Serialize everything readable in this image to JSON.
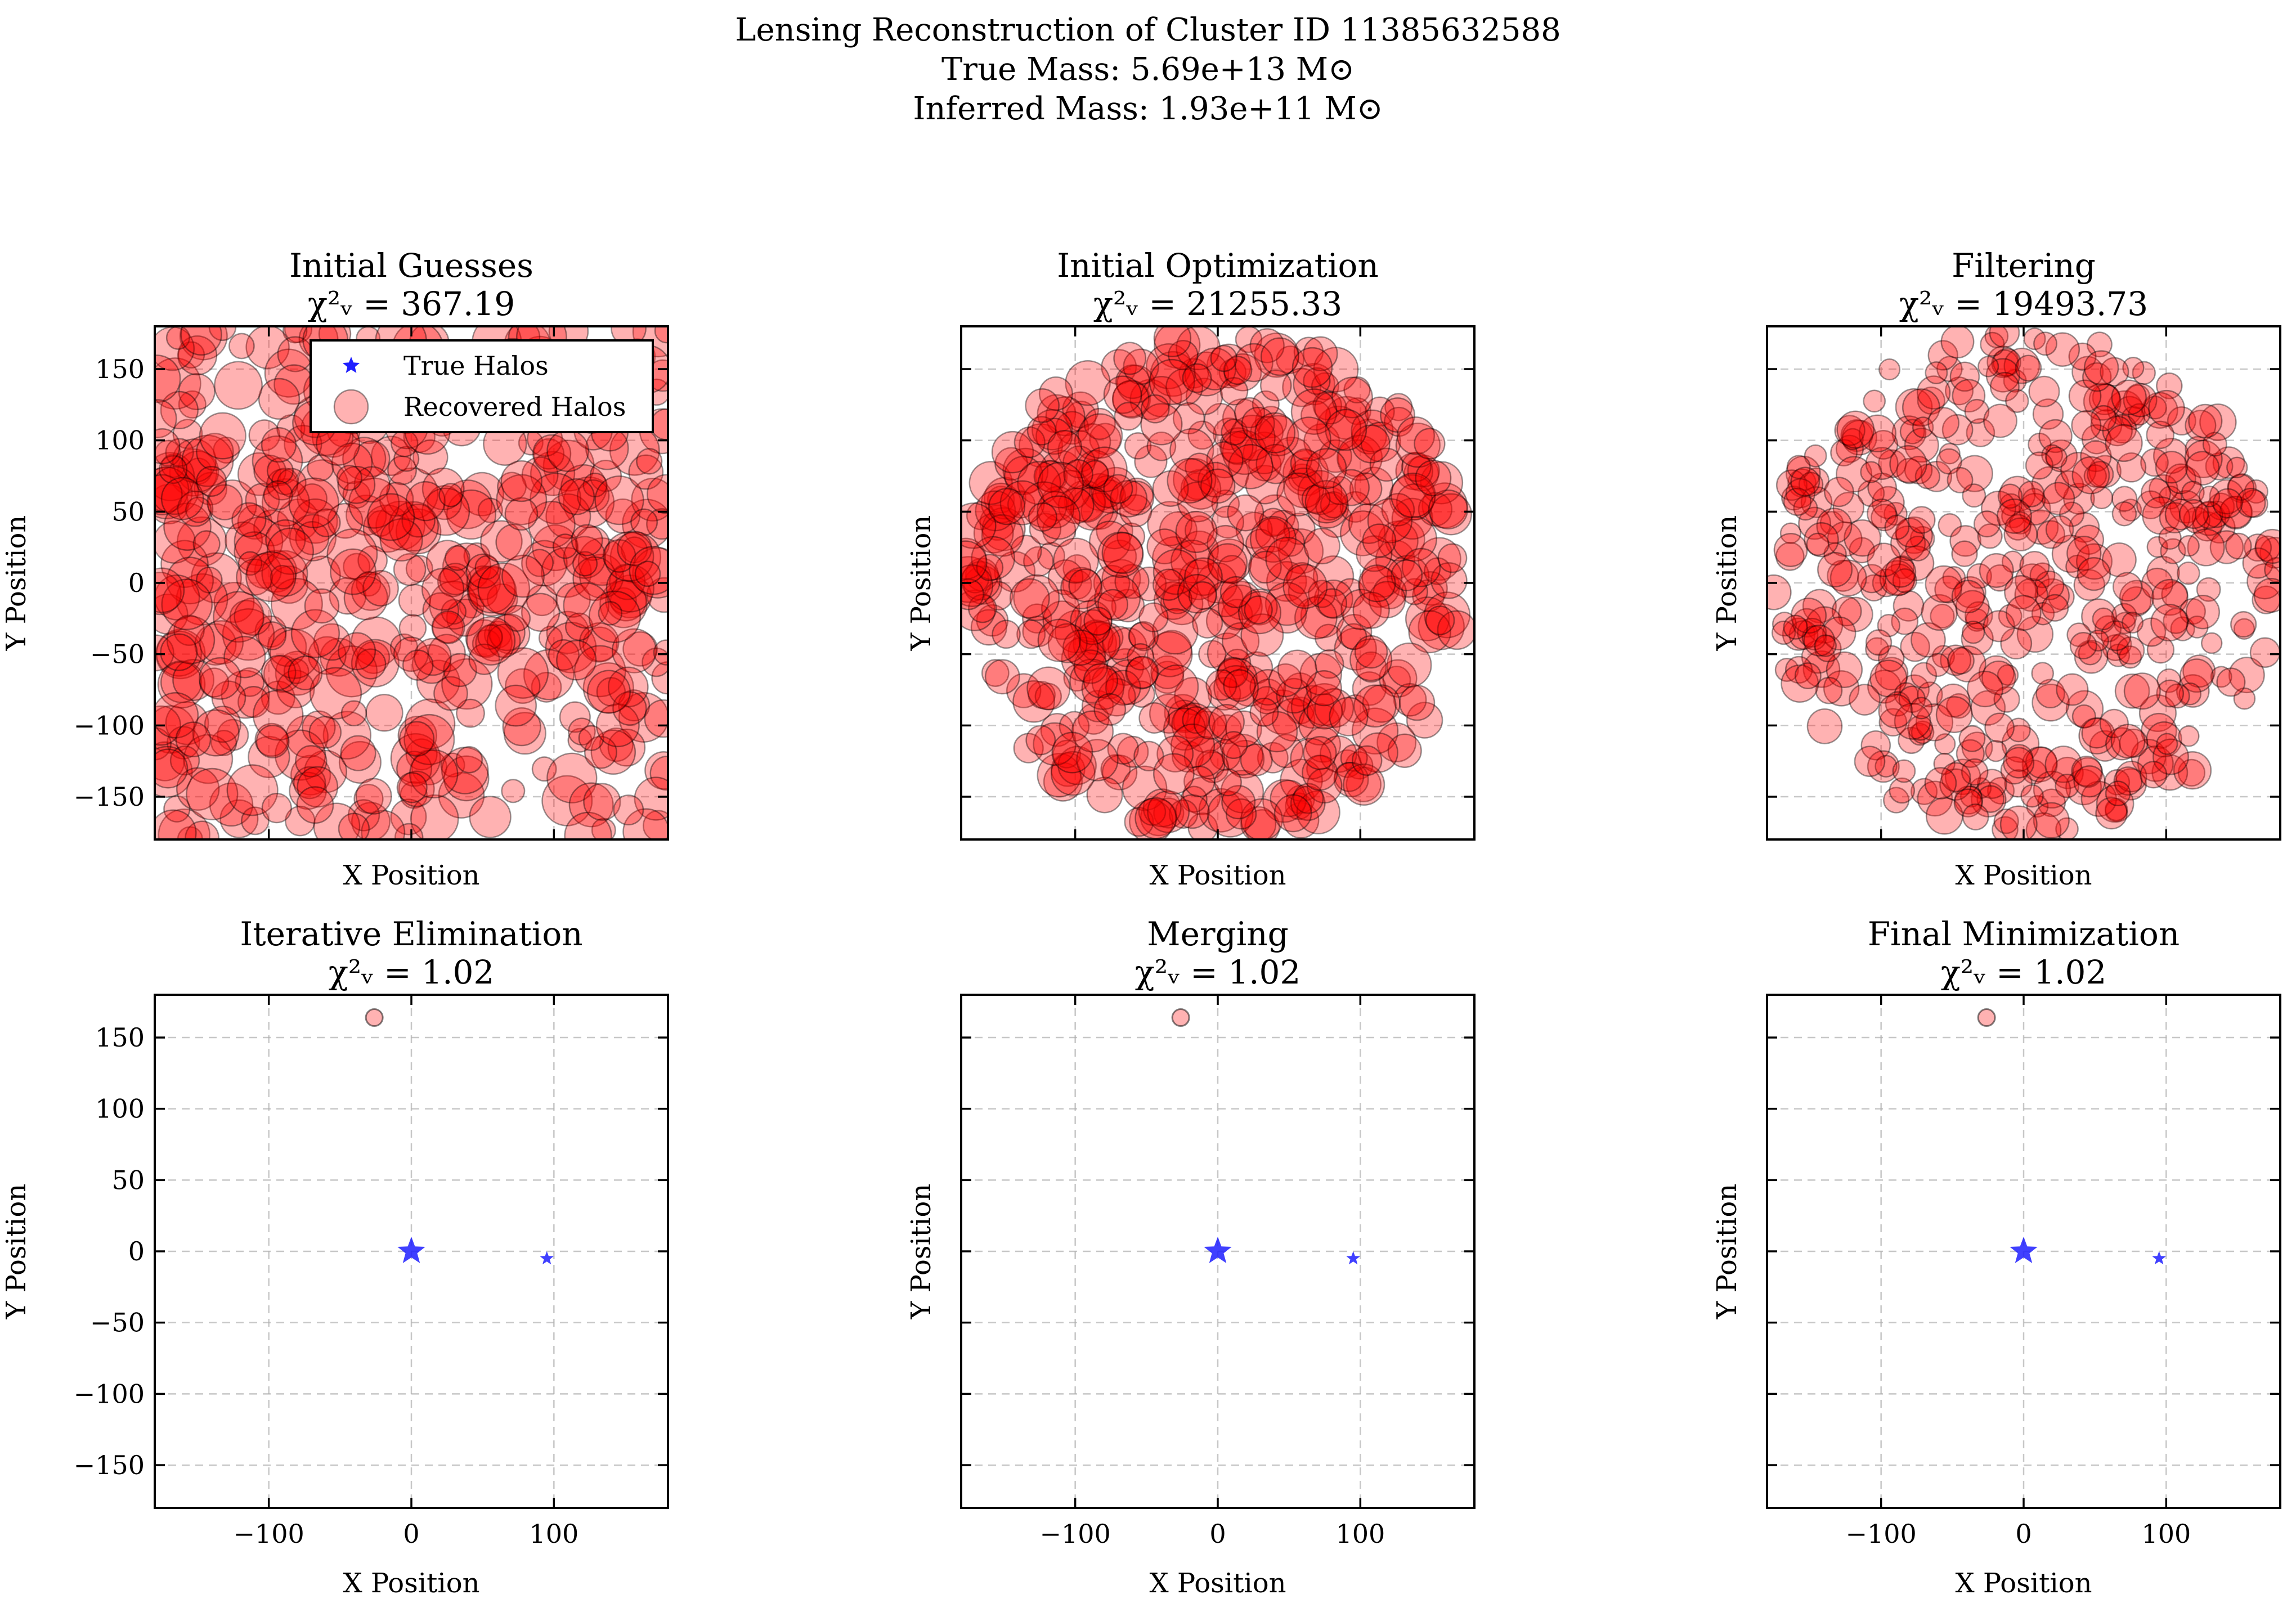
{
  "figure": {
    "title_lines": [
      "Lensing Reconstruction of Cluster ID 11385632588",
      "True Mass: 5.69e+13 M⊙",
      "Inferred Mass: 1.93e+11 M⊙"
    ]
  },
  "colors": {
    "true_halo": "#1f1fff",
    "recovered_halo": "#ff0000",
    "grid": "#b0b0b0",
    "frame": "#000000"
  },
  "legend": {
    "true_label": "True Halos",
    "recovered_label": "Recovered Halos",
    "placement": "upper-right"
  },
  "chart_data": [
    {
      "type": "scatter",
      "title": "Initial Guesses",
      "chi2_text": "χ²ᵥ = 367.19",
      "xlabel": "X Position",
      "ylabel": "Y Position",
      "xlim": [
        -180,
        180
      ],
      "ylim": [
        -180,
        180
      ],
      "xticks": [
        -100,
        0,
        100
      ],
      "yticks": [
        -150,
        -100,
        -50,
        0,
        50,
        100,
        150
      ],
      "show_xticklabels": false,
      "show_yticklabels": true,
      "grid": true,
      "legend": true,
      "recovered_cloud": {
        "count": 520,
        "x_range": [
          -180,
          180
        ],
        "y_range": [
          -180,
          180
        ],
        "size_range": [
          8,
          18
        ],
        "distribution": "square",
        "seed": 11
      },
      "recovered_halos": [],
      "true_halos": []
    },
    {
      "type": "scatter",
      "title": "Initial Optimization",
      "chi2_text": "χ²ᵥ = 21255.33",
      "xlabel": "X Position",
      "ylabel": "Y Position",
      "xlim": [
        -180,
        180
      ],
      "ylim": [
        -180,
        180
      ],
      "xticks": [
        -100,
        0,
        100
      ],
      "yticks": [
        -150,
        -100,
        -50,
        0,
        50,
        100,
        150
      ],
      "show_xticklabels": false,
      "show_yticklabels": false,
      "grid": true,
      "legend": false,
      "recovered_cloud": {
        "count": 560,
        "x_range": [
          -180,
          180
        ],
        "y_range": [
          -180,
          180
        ],
        "size_range": [
          9,
          16
        ],
        "distribution": "disk",
        "radius": 178,
        "seed": 23
      },
      "recovered_halos": [],
      "true_halos": []
    },
    {
      "type": "scatter",
      "title": "Filtering",
      "chi2_text": "χ²ᵥ = 19493.73",
      "xlabel": "X Position",
      "ylabel": "Y Position",
      "xlim": [
        -180,
        180
      ],
      "ylim": [
        -180,
        180
      ],
      "xticks": [
        -100,
        0,
        100
      ],
      "yticks": [
        -150,
        -100,
        -50,
        0,
        50,
        100,
        150
      ],
      "show_xticklabels": false,
      "show_yticklabels": false,
      "grid": true,
      "legend": false,
      "recovered_cloud": {
        "count": 500,
        "x_range": [
          -180,
          180
        ],
        "y_range": [
          -180,
          180
        ],
        "size_range": [
          7,
          13
        ],
        "distribution": "disk",
        "radius": 178,
        "seed": 37
      },
      "recovered_halos": [],
      "true_halos": []
    },
    {
      "type": "scatter",
      "title": "Iterative Elimination",
      "chi2_text": "χ²ᵥ = 1.02",
      "xlabel": "X Position",
      "ylabel": "Y Position",
      "xlim": [
        -180,
        180
      ],
      "ylim": [
        -180,
        180
      ],
      "xticks": [
        -100,
        0,
        100
      ],
      "yticks": [
        -150,
        -100,
        -50,
        0,
        50,
        100,
        150
      ],
      "show_xticklabels": true,
      "show_yticklabels": true,
      "grid": true,
      "legend": false,
      "recovered_cloud": null,
      "recovered_halos": [
        {
          "x": -26,
          "y": 164
        }
      ],
      "true_halos": [
        {
          "x": 0,
          "y": 0,
          "size": "large"
        },
        {
          "x": 95,
          "y": -5,
          "size": "small"
        }
      ]
    },
    {
      "type": "scatter",
      "title": "Merging",
      "chi2_text": "χ²ᵥ = 1.02",
      "xlabel": "X Position",
      "ylabel": "Y Position",
      "xlim": [
        -180,
        180
      ],
      "ylim": [
        -180,
        180
      ],
      "xticks": [
        -100,
        0,
        100
      ],
      "yticks": [
        -150,
        -100,
        -50,
        0,
        50,
        100,
        150
      ],
      "show_xticklabels": true,
      "show_yticklabels": false,
      "grid": true,
      "legend": false,
      "recovered_cloud": null,
      "recovered_halos": [
        {
          "x": -26,
          "y": 164
        }
      ],
      "true_halos": [
        {
          "x": 0,
          "y": 0,
          "size": "large"
        },
        {
          "x": 95,
          "y": -5,
          "size": "small"
        }
      ]
    },
    {
      "type": "scatter",
      "title": "Final Minimization",
      "chi2_text": "χ²ᵥ = 1.02",
      "xlabel": "X Position",
      "ylabel": "Y Position",
      "xlim": [
        -180,
        180
      ],
      "ylim": [
        -180,
        180
      ],
      "xticks": [
        -100,
        0,
        100
      ],
      "yticks": [
        -150,
        -100,
        -50,
        0,
        50,
        100,
        150
      ],
      "show_xticklabels": true,
      "show_yticklabels": false,
      "grid": true,
      "legend": false,
      "recovered_cloud": null,
      "recovered_halos": [
        {
          "x": -26,
          "y": 164
        }
      ],
      "true_halos": [
        {
          "x": 0,
          "y": 0,
          "size": "large"
        },
        {
          "x": 95,
          "y": -5,
          "size": "small"
        }
      ]
    }
  ]
}
